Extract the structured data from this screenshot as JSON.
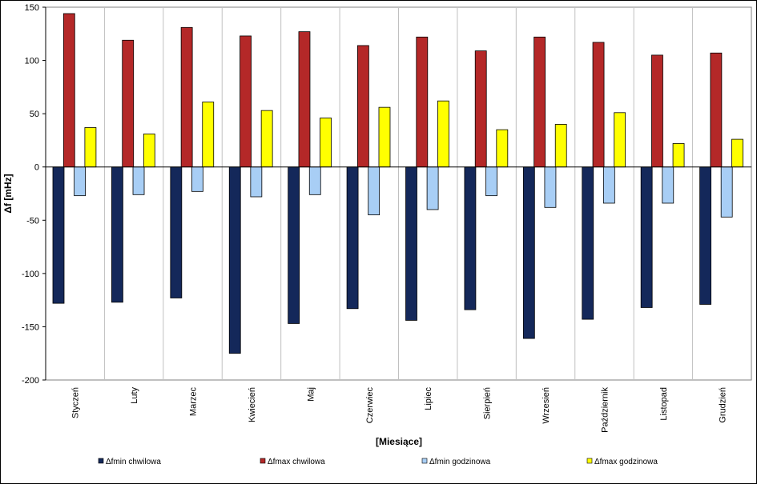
{
  "chart_data": {
    "type": "bar",
    "xlabel": "[Miesiące]",
    "ylabel": "Δf [mHz]",
    "ylim": [
      -200,
      150
    ],
    "yticks": [
      150,
      100,
      50,
      0,
      -50,
      -100,
      -150,
      -200
    ],
    "grid": "vertical separators between categories",
    "legend_position": "bottom",
    "categories": [
      "Styczeń",
      "Luty",
      "Marzec",
      "Kwiecień",
      "Maj",
      "Czerwiec",
      "Lipiec",
      "Sierpień",
      "Wrzesień",
      "Październik",
      "Listopad",
      "Grudzień"
    ],
    "series": [
      {
        "name": "Δfmin chwilowa",
        "color": "#14285a",
        "values": [
          -128,
          -127,
          -123,
          -175,
          -147,
          -133,
          -144,
          -134,
          -161,
          -143,
          -132,
          -129
        ]
      },
      {
        "name": "Δfmax chwilowa",
        "color": "#b42828",
        "values": [
          144,
          119,
          131,
          123,
          127,
          114,
          122,
          109,
          122,
          117,
          105,
          107
        ]
      },
      {
        "name": "Δfmin godzinowa",
        "color": "#a8cef5",
        "values": [
          -27,
          -26,
          -23,
          -28,
          -26,
          -45,
          -40,
          -27,
          -38,
          -34,
          -34,
          -47
        ]
      },
      {
        "name": "Δfmax godzinowa",
        "color": "#ffff00",
        "values": [
          37,
          31,
          61,
          53,
          46,
          56,
          62,
          35,
          40,
          51,
          22,
          26
        ]
      }
    ]
  }
}
